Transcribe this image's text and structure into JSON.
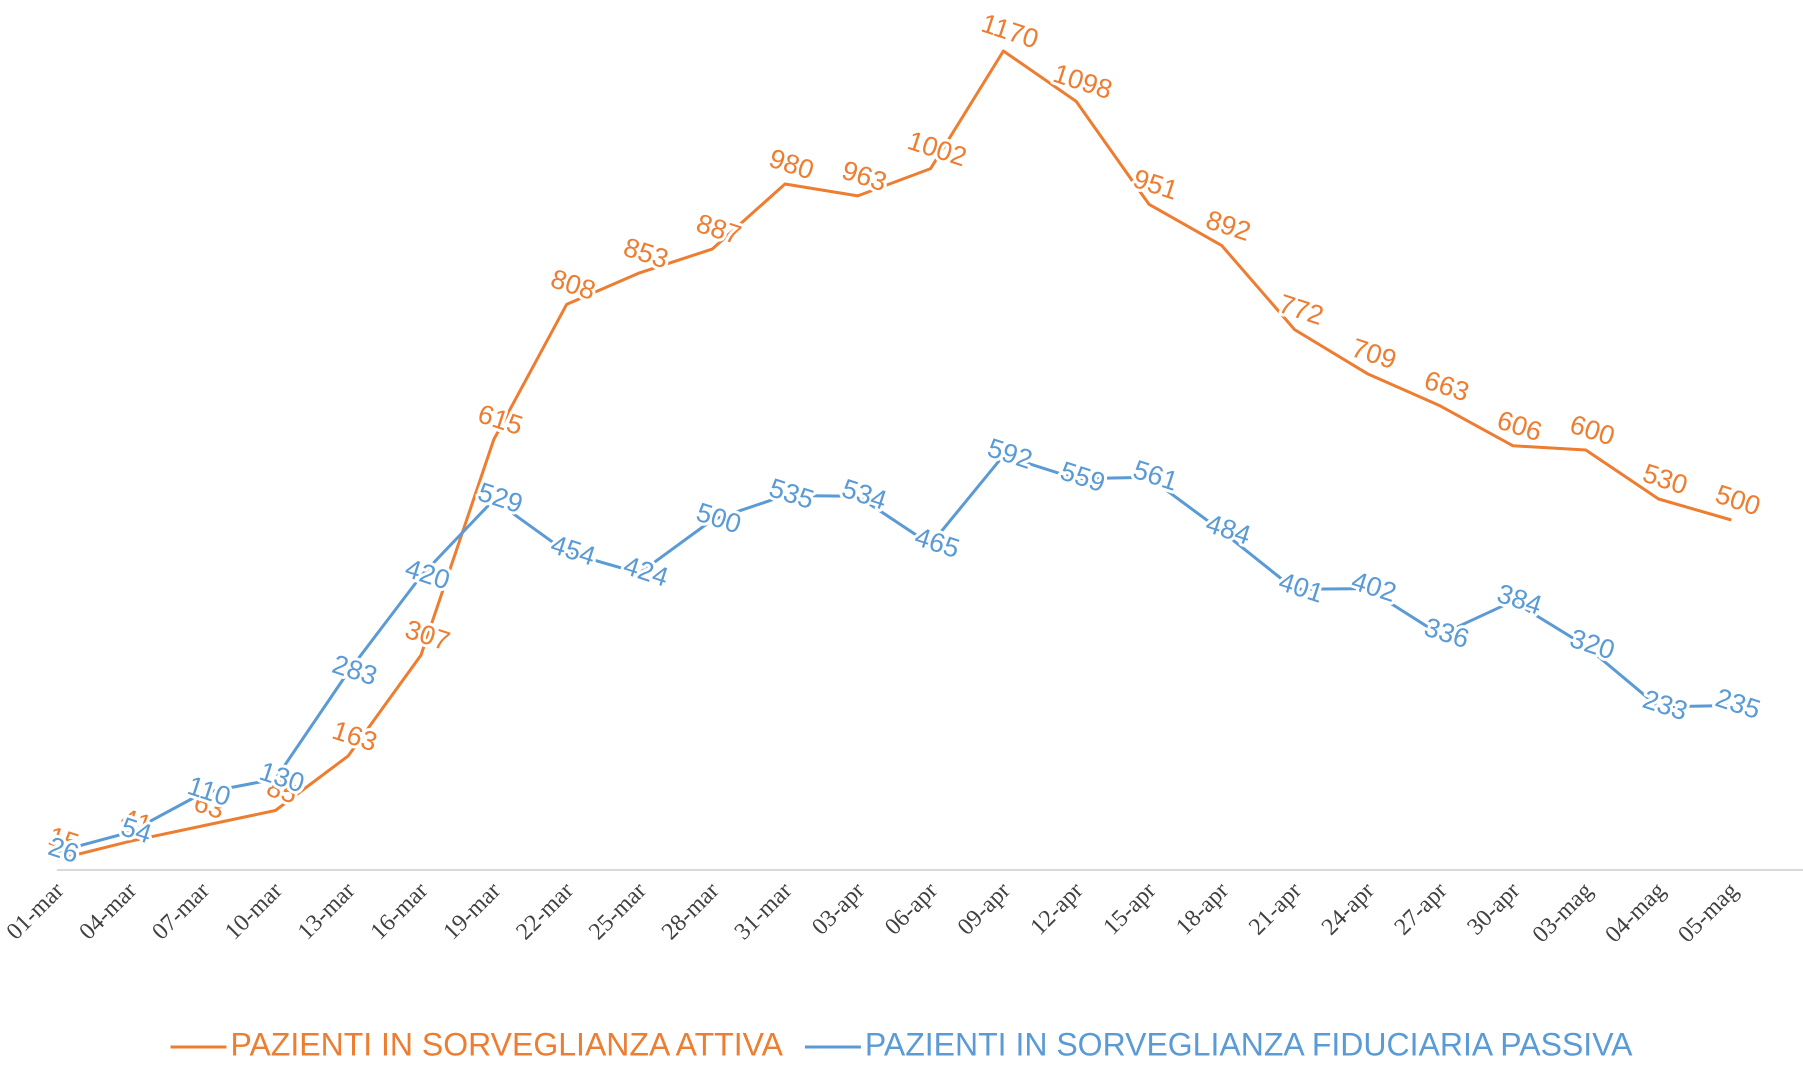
{
  "chart_data": {
    "type": "line",
    "categories": [
      "01-mar",
      "04-mar",
      "07-mar",
      "10-mar",
      "13-mar",
      "16-mar",
      "19-mar",
      "22-mar",
      "25-mar",
      "28-mar",
      "31-mar",
      "03-apr",
      "06-apr",
      "09-apr",
      "12-apr",
      "15-apr",
      "18-apr",
      "21-apr",
      "24-apr",
      "27-apr",
      "30-apr",
      "03-mag",
      "04-mag",
      "05-mag"
    ],
    "series": [
      {
        "name": "PAZIENTI IN SORVEGLIANZA ATTIVA",
        "color": "#ed7d31",
        "values": [
          15,
          41,
          63,
          85,
          163,
          307,
          615,
          808,
          853,
          887,
          980,
          963,
          1002,
          1170,
          1098,
          951,
          892,
          772,
          709,
          663,
          606,
          600,
          530,
          500
        ]
      },
      {
        "name": "PAZIENTI IN SORVEGLIANZA FIDUCIARIA PASSIVA",
        "color": "#5b9bd5",
        "values": [
          26,
          54,
          110,
          130,
          283,
          420,
          529,
          454,
          424,
          500,
          535,
          534,
          465,
          592,
          559,
          561,
          484,
          401,
          402,
          336,
          384,
          320,
          233,
          235
        ]
      }
    ],
    "ylim": [
      0,
      1200
    ],
    "legend": "bottom"
  }
}
